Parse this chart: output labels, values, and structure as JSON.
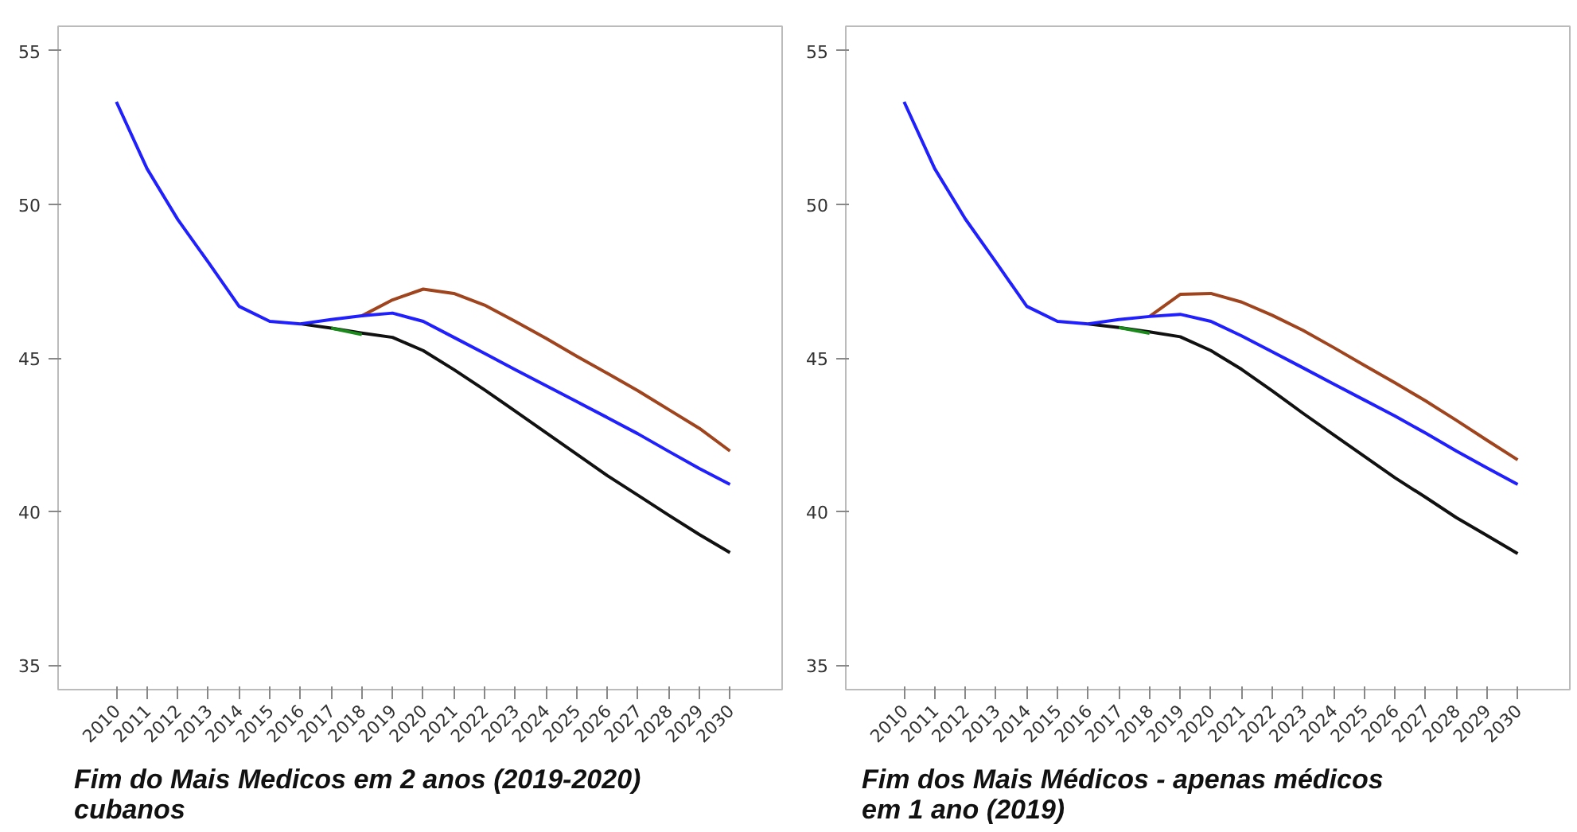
{
  "chart_data": [
    {
      "type": "line",
      "title": "Fim do Mais Medicos em 2 anos (2019-2020)\ncubanos",
      "xlim": [
        2008.1,
        2031.7
      ],
      "xticks": [
        2010,
        2011,
        2012,
        2013,
        2014,
        2015,
        2016,
        2017,
        2018,
        2019,
        2020,
        2021,
        2022,
        2023,
        2024,
        2025,
        2026,
        2027,
        2028,
        2029,
        2030
      ],
      "ylim": [
        34.2,
        55.8
      ],
      "yticks": [
        35,
        40,
        45,
        50,
        55
      ],
      "line_style": "solid",
      "series": [
        {
          "color": "#111111",
          "x": [
            2016,
            2017,
            2018,
            2019,
            2020,
            2021,
            2022,
            2023,
            2024,
            2025,
            2026,
            2027,
            2028,
            2029,
            2030
          ],
          "values": [
            46.11,
            45.97,
            45.81,
            45.67,
            45.24,
            44.62,
            43.96,
            43.27,
            42.57,
            41.87,
            41.17,
            40.53,
            39.88,
            39.25,
            38.66
          ]
        },
        {
          "color": "#1a8a1a",
          "x": [
            2017,
            2018
          ],
          "values": [
            45.97,
            45.76
          ]
        },
        {
          "color": "#a0441e",
          "x": [
            2018,
            2019,
            2020,
            2021,
            2022,
            2023,
            2024,
            2025,
            2026,
            2027,
            2028,
            2029,
            2030
          ],
          "values": [
            46.37,
            46.89,
            47.24,
            47.1,
            46.72,
            46.19,
            45.64,
            45.06,
            44.5,
            43.93,
            43.32,
            42.71,
            41.97
          ]
        },
        {
          "color": "#2020ff",
          "x": [
            2010,
            2011,
            2012,
            2013,
            2014,
            2015,
            2016,
            2017,
            2018,
            2019,
            2020,
            2021,
            2022,
            2023,
            2024,
            2025,
            2026,
            2027,
            2028,
            2029,
            2030
          ],
          "values": [
            53.34,
            51.16,
            49.51,
            48.11,
            46.68,
            46.19,
            46.11,
            46.25,
            46.37,
            46.46,
            46.19,
            45.67,
            45.15,
            44.62,
            44.1,
            43.58,
            43.06,
            42.53,
            41.96,
            41.4,
            40.88
          ]
        }
      ]
    },
    {
      "type": "line",
      "title": "Fim dos Mais Médicos - apenas médicos\nem 1 ano (2019)",
      "xlim": [
        2008.1,
        2031.7
      ],
      "xticks": [
        2010,
        2011,
        2012,
        2013,
        2014,
        2015,
        2016,
        2017,
        2018,
        2019,
        2020,
        2021,
        2022,
        2023,
        2024,
        2025,
        2026,
        2027,
        2028,
        2029,
        2030
      ],
      "ylim": [
        34.2,
        55.8
      ],
      "yticks": [
        35,
        40,
        45,
        50,
        55
      ],
      "line_style": "solid",
      "series": [
        {
          "color": "#111111",
          "x": [
            2016,
            2017,
            2018,
            2019,
            2020,
            2021,
            2022,
            2023,
            2024,
            2025,
            2026,
            2027,
            2028,
            2029,
            2030
          ],
          "values": [
            46.11,
            45.99,
            45.85,
            45.69,
            45.24,
            44.63,
            43.93,
            43.2,
            42.5,
            41.8,
            41.1,
            40.46,
            39.8,
            39.22,
            38.63
          ]
        },
        {
          "color": "#1a8a1a",
          "x": [
            2017,
            2018
          ],
          "values": [
            45.99,
            45.8
          ]
        },
        {
          "color": "#a0441e",
          "x": [
            2018,
            2019,
            2020,
            2021,
            2022,
            2023,
            2024,
            2025,
            2026,
            2027,
            2028,
            2029,
            2030
          ],
          "values": [
            46.35,
            47.07,
            47.1,
            46.82,
            46.39,
            45.9,
            45.34,
            44.76,
            44.19,
            43.6,
            42.97,
            42.32,
            41.68
          ]
        },
        {
          "color": "#2020ff",
          "x": [
            2010,
            2011,
            2012,
            2013,
            2014,
            2015,
            2016,
            2017,
            2018,
            2019,
            2020,
            2021,
            2022,
            2023,
            2024,
            2025,
            2026,
            2027,
            2028,
            2029,
            2030
          ],
          "values": [
            53.34,
            51.16,
            49.52,
            48.11,
            46.68,
            46.19,
            46.11,
            46.25,
            46.35,
            46.42,
            46.19,
            45.72,
            45.2,
            44.68,
            44.15,
            43.63,
            43.11,
            42.55,
            41.97,
            41.42,
            40.88
          ]
        }
      ]
    }
  ]
}
